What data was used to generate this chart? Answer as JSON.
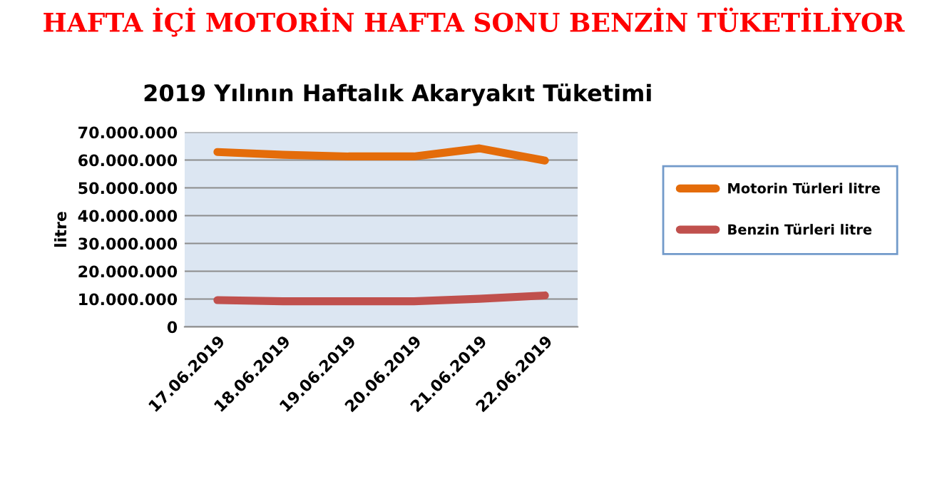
{
  "chart_data": {
    "type": "line",
    "title": "HAFTA İÇİ MOTORİN HAFTA SONU BENZİN TÜKETİLİYOR",
    "subtitle": "2019 Yılının Haftalık Akaryakıt Tüketimi",
    "ylabel": "litre",
    "categories": [
      "17.06.2019",
      "18.06.2019",
      "19.06.2019",
      "20.06.2019",
      "21.06.2019",
      "22.06.2019"
    ],
    "series": [
      {
        "name": "Motorin Türleri litre",
        "color": "#e46c0a",
        "values": [
          62900000,
          61900000,
          61300000,
          61300000,
          64200000,
          59800000
        ]
      },
      {
        "name": "Benzin Türleri litre",
        "color": "#c0504d",
        "values": [
          9600000,
          9200000,
          9200000,
          9200000,
          10100000,
          11300000
        ]
      }
    ],
    "ylim": [
      0,
      70000000
    ],
    "yticks": [
      {
        "value": 0,
        "label": "0"
      },
      {
        "value": 10000000,
        "label": "10.000.000"
      },
      {
        "value": 20000000,
        "label": "20.000.000"
      },
      {
        "value": 30000000,
        "label": "30.000.000"
      },
      {
        "value": 40000000,
        "label": "40.000.000"
      },
      {
        "value": 50000000,
        "label": "50.000.000"
      },
      {
        "value": 60000000,
        "label": "60.000.000"
      },
      {
        "value": 70000000,
        "label": "70.000.000"
      }
    ],
    "grid": "y",
    "legend": "right",
    "marker": "none",
    "line_style": "solid"
  }
}
